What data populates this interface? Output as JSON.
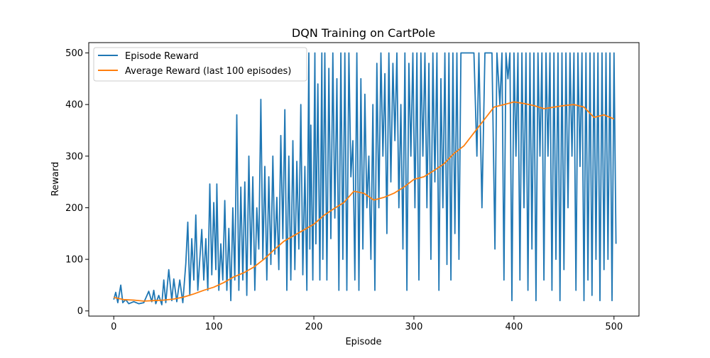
{
  "chart_data": {
    "type": "line",
    "title": "DQN Training on CartPole",
    "xlabel": "Episode",
    "ylabel": "Reward",
    "xlim": [
      -25,
      525
    ],
    "ylim": [
      -10,
      520
    ],
    "xticks": [
      0,
      100,
      200,
      300,
      400,
      500
    ],
    "yticks": [
      0,
      100,
      200,
      300,
      400,
      500
    ],
    "grid": false,
    "legend_position": "upper-left",
    "series": [
      {
        "name": "Episode Reward",
        "color": "#1f77b4",
        "points": [
          [
            0,
            22
          ],
          [
            2,
            36
          ],
          [
            4,
            16
          ],
          [
            7,
            50
          ],
          [
            9,
            16
          ],
          [
            12,
            22
          ],
          [
            15,
            14
          ],
          [
            20,
            18
          ],
          [
            25,
            14
          ],
          [
            30,
            16
          ],
          [
            35,
            38
          ],
          [
            38,
            18
          ],
          [
            40,
            40
          ],
          [
            42,
            14
          ],
          [
            45,
            30
          ],
          [
            48,
            12
          ],
          [
            50,
            60
          ],
          [
            52,
            16
          ],
          [
            55,
            80
          ],
          [
            58,
            20
          ],
          [
            60,
            62
          ],
          [
            63,
            18
          ],
          [
            66,
            60
          ],
          [
            69,
            16
          ],
          [
            72,
            92
          ],
          [
            74,
            172
          ],
          [
            76,
            30
          ],
          [
            78,
            140
          ],
          [
            80,
            60
          ],
          [
            82,
            186
          ],
          [
            84,
            40
          ],
          [
            86,
            100
          ],
          [
            88,
            158
          ],
          [
            90,
            60
          ],
          [
            92,
            140
          ],
          [
            94,
            40
          ],
          [
            96,
            246
          ],
          [
            98,
            70
          ],
          [
            100,
            210
          ],
          [
            102,
            80
          ],
          [
            103,
            246
          ],
          [
            105,
            40
          ],
          [
            107,
            130
          ],
          [
            109,
            60
          ],
          [
            111,
            214
          ],
          [
            113,
            40
          ],
          [
            115,
            160
          ],
          [
            117,
            20
          ],
          [
            119,
            200
          ],
          [
            121,
            60
          ],
          [
            123,
            380
          ],
          [
            125,
            40
          ],
          [
            127,
            240
          ],
          [
            129,
            60
          ],
          [
            131,
            250
          ],
          [
            133,
            30
          ],
          [
            135,
            300
          ],
          [
            137,
            90
          ],
          [
            139,
            260
          ],
          [
            141,
            40
          ],
          [
            143,
            200
          ],
          [
            145,
            120
          ],
          [
            147,
            410
          ],
          [
            149,
            100
          ],
          [
            151,
            280
          ],
          [
            153,
            60
          ],
          [
            155,
            260
          ],
          [
            157,
            90
          ],
          [
            159,
            300
          ],
          [
            161,
            110
          ],
          [
            163,
            220
          ],
          [
            165,
            80
          ],
          [
            167,
            340
          ],
          [
            169,
            140
          ],
          [
            171,
            390
          ],
          [
            173,
            40
          ],
          [
            175,
            300
          ],
          [
            177,
            60
          ],
          [
            179,
            330
          ],
          [
            181,
            80
          ],
          [
            183,
            290
          ],
          [
            185,
            120
          ],
          [
            187,
            400
          ],
          [
            189,
            70
          ],
          [
            191,
            280
          ],
          [
            193,
            40
          ],
          [
            195,
            500
          ],
          [
            196,
            120
          ],
          [
            197,
            360
          ],
          [
            199,
            60
          ],
          [
            201,
            500
          ],
          [
            202,
            130
          ],
          [
            204,
            440
          ],
          [
            206,
            60
          ],
          [
            208,
            500
          ],
          [
            209,
            100
          ],
          [
            211,
            500
          ],
          [
            213,
            60
          ],
          [
            215,
            470
          ],
          [
            217,
            140
          ],
          [
            219,
            500
          ],
          [
            221,
            180
          ],
          [
            223,
            450
          ],
          [
            225,
            40
          ],
          [
            227,
            500
          ],
          [
            229,
            100
          ],
          [
            231,
            500
          ],
          [
            233,
            40
          ],
          [
            235,
            500
          ],
          [
            237,
            260
          ],
          [
            239,
            330
          ],
          [
            241,
            60
          ],
          [
            243,
            500
          ],
          [
            245,
            40
          ],
          [
            247,
            450
          ],
          [
            249,
            120
          ],
          [
            251,
            420
          ],
          [
            253,
            200
          ],
          [
            255,
            300
          ],
          [
            257,
            100
          ],
          [
            259,
            400
          ],
          [
            261,
            40
          ],
          [
            263,
            480
          ],
          [
            265,
            200
          ],
          [
            267,
            500
          ],
          [
            269,
            300
          ],
          [
            271,
            460
          ],
          [
            273,
            150
          ],
          [
            275,
            500
          ],
          [
            277,
            250
          ],
          [
            279,
            480
          ],
          [
            281,
            330
          ],
          [
            283,
            500
          ],
          [
            285,
            200
          ],
          [
            287,
            400
          ],
          [
            289,
            120
          ],
          [
            291,
            500
          ],
          [
            293,
            40
          ],
          [
            295,
            480
          ],
          [
            297,
            300
          ],
          [
            299,
            500
          ],
          [
            301,
            200
          ],
          [
            303,
            500
          ],
          [
            305,
            60
          ],
          [
            307,
            500
          ],
          [
            309,
            300
          ],
          [
            311,
            500
          ],
          [
            313,
            200
          ],
          [
            315,
            480
          ],
          [
            317,
            100
          ],
          [
            319,
            500
          ],
          [
            321,
            250
          ],
          [
            323,
            500
          ],
          [
            325,
            40
          ],
          [
            327,
            450
          ],
          [
            329,
            200
          ],
          [
            331,
            500
          ],
          [
            333,
            90
          ],
          [
            335,
            500
          ],
          [
            337,
            60
          ],
          [
            339,
            500
          ],
          [
            341,
            150
          ],
          [
            343,
            500
          ],
          [
            345,
            100
          ],
          [
            347,
            500
          ],
          [
            350,
            500
          ],
          [
            353,
            500
          ],
          [
            356,
            500
          ],
          [
            360,
            500
          ],
          [
            363,
            300
          ],
          [
            365,
            500
          ],
          [
            368,
            200
          ],
          [
            371,
            500
          ],
          [
            374,
            500
          ],
          [
            378,
            500
          ],
          [
            381,
            120
          ],
          [
            383,
            500
          ],
          [
            386,
            400
          ],
          [
            388,
            500
          ],
          [
            390,
            60
          ],
          [
            392,
            500
          ],
          [
            394,
            450
          ],
          [
            396,
            500
          ],
          [
            398,
            20
          ],
          [
            400,
            500
          ],
          [
            402,
            300
          ],
          [
            404,
            500
          ],
          [
            406,
            60
          ],
          [
            408,
            500
          ],
          [
            410,
            200
          ],
          [
            412,
            500
          ],
          [
            414,
            40
          ],
          [
            416,
            500
          ],
          [
            418,
            120
          ],
          [
            420,
            500
          ],
          [
            422,
            20
          ],
          [
            424,
            500
          ],
          [
            426,
            300
          ],
          [
            428,
            500
          ],
          [
            430,
            60
          ],
          [
            432,
            500
          ],
          [
            434,
            300
          ],
          [
            436,
            500
          ],
          [
            438,
            40
          ],
          [
            440,
            500
          ],
          [
            442,
            100
          ],
          [
            444,
            500
          ],
          [
            446,
            20
          ],
          [
            448,
            500
          ],
          [
            450,
            80
          ],
          [
            452,
            500
          ],
          [
            454,
            200
          ],
          [
            456,
            500
          ],
          [
            458,
            300
          ],
          [
            460,
            500
          ],
          [
            462,
            40
          ],
          [
            464,
            500
          ],
          [
            466,
            280
          ],
          [
            468,
            500
          ],
          [
            470,
            20
          ],
          [
            472,
            500
          ],
          [
            474,
            60
          ],
          [
            476,
            500
          ],
          [
            478,
            30
          ],
          [
            480,
            500
          ],
          [
            482,
            100
          ],
          [
            484,
            500
          ],
          [
            486,
            20
          ],
          [
            488,
            500
          ],
          [
            490,
            80
          ],
          [
            492,
            500
          ],
          [
            494,
            100
          ],
          [
            496,
            500
          ],
          [
            498,
            20
          ],
          [
            500,
            500
          ],
          [
            502,
            130
          ]
        ]
      },
      {
        "name": "Average Reward (last 100 episodes)",
        "color": "#ff7f0e",
        "points": [
          [
            0,
            26
          ],
          [
            10,
            22
          ],
          [
            20,
            21
          ],
          [
            30,
            19
          ],
          [
            40,
            20
          ],
          [
            50,
            21
          ],
          [
            60,
            23
          ],
          [
            70,
            27
          ],
          [
            80,
            33
          ],
          [
            90,
            40
          ],
          [
            100,
            46
          ],
          [
            110,
            55
          ],
          [
            120,
            66
          ],
          [
            130,
            74
          ],
          [
            140,
            85
          ],
          [
            150,
            100
          ],
          [
            160,
            118
          ],
          [
            170,
            135
          ],
          [
            180,
            146
          ],
          [
            190,
            157
          ],
          [
            200,
            168
          ],
          [
            210,
            185
          ],
          [
            220,
            198
          ],
          [
            230,
            210
          ],
          [
            240,
            232
          ],
          [
            250,
            228
          ],
          [
            260,
            215
          ],
          [
            270,
            220
          ],
          [
            280,
            228
          ],
          [
            290,
            240
          ],
          [
            300,
            255
          ],
          [
            310,
            260
          ],
          [
            320,
            272
          ],
          [
            330,
            285
          ],
          [
            340,
            305
          ],
          [
            350,
            320
          ],
          [
            360,
            345
          ],
          [
            370,
            370
          ],
          [
            380,
            395
          ],
          [
            390,
            400
          ],
          [
            400,
            405
          ],
          [
            410,
            402
          ],
          [
            420,
            398
          ],
          [
            430,
            392
          ],
          [
            440,
            395
          ],
          [
            450,
            398
          ],
          [
            460,
            400
          ],
          [
            470,
            395
          ],
          [
            480,
            375
          ],
          [
            490,
            380
          ],
          [
            500,
            372
          ]
        ]
      }
    ]
  }
}
